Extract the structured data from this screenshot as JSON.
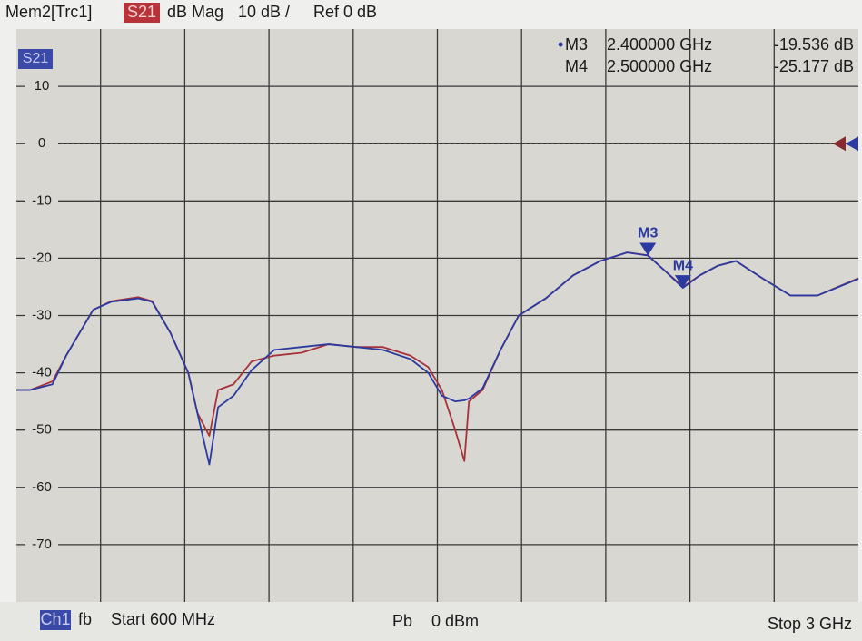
{
  "header": {
    "trace": "Mem2[Trc1]",
    "param": "S21",
    "format": "dB Mag",
    "scale": "10 dB /",
    "ref": "Ref 0 dB"
  },
  "chart_data": {
    "type": "line",
    "trace_label": "S21",
    "x": [
      600,
      639,
      703,
      742,
      819,
      871,
      948,
      987,
      1039,
      1090,
      1116,
      1150,
      1175,
      1219,
      1271,
      1335,
      1413,
      1490,
      1568,
      1645,
      1723,
      1774,
      1813,
      1851,
      1877,
      1890,
      1929,
      1980,
      2032,
      2109,
      2187,
      2264,
      2341,
      2400,
      2445,
      2500,
      2548,
      2600,
      2651,
      2729,
      2806,
      2884,
      3000
    ],
    "xlim": [
      600,
      3000
    ],
    "ylim": [
      -80,
      20
    ],
    "yticks": [
      10,
      0,
      -10,
      -20,
      -30,
      -40,
      -50,
      -60,
      -70
    ],
    "grid": true,
    "ref_value": 0,
    "series": [
      {
        "color": "#2b3aa0",
        "values": [
          -43,
          -43,
          -42,
          -37,
          -29,
          -27.6,
          -27,
          -27.6,
          -33,
          -40,
          -47,
          -56,
          -46,
          -44,
          -39.5,
          -36,
          -35.5,
          -35,
          -35.5,
          -36,
          -37.6,
          -40,
          -44,
          -45,
          -44.8,
          -44.5,
          -42.7,
          -36,
          -30,
          -27,
          -23,
          -20.5,
          -19,
          -19.536,
          -22,
          -25.177,
          -23,
          -21.3,
          -20.5,
          -23.6,
          -26.5,
          -26.5,
          -23.6
        ]
      },
      {
        "color": "#a8323a",
        "values": [
          -43,
          -43,
          -41.5,
          -37,
          -29,
          -27.5,
          -26.8,
          -27.5,
          -33,
          -40,
          -47,
          -51,
          -43,
          -42,
          -38,
          -37,
          -36.5,
          -35,
          -35.5,
          -35.5,
          -37,
          -39,
          -43,
          -50,
          -55.4,
          -45,
          -43,
          -36,
          -30,
          -27,
          -23,
          -20.5,
          -19,
          -19.5,
          -22,
          -25,
          -23,
          -21.3,
          -20.5,
          -23.6,
          -26.5,
          -26.5,
          -23.5
        ]
      }
    ],
    "markers": [
      {
        "label": "M3",
        "x": 2400,
        "value": -19.536,
        "freq_label": "2.400000 GHz",
        "value_label": "-19.536 dB"
      },
      {
        "label": "M4",
        "x": 2500,
        "value": -25.177,
        "freq_label": "2.500000 GHz",
        "value_label": "-25.177 dB"
      }
    ]
  },
  "footer": {
    "channel": "Ch1",
    "fb": "fb",
    "start": "Start 600 MHz",
    "pb": "Pb",
    "power": "0 dBm",
    "stop": "Stop 3 GHz"
  }
}
